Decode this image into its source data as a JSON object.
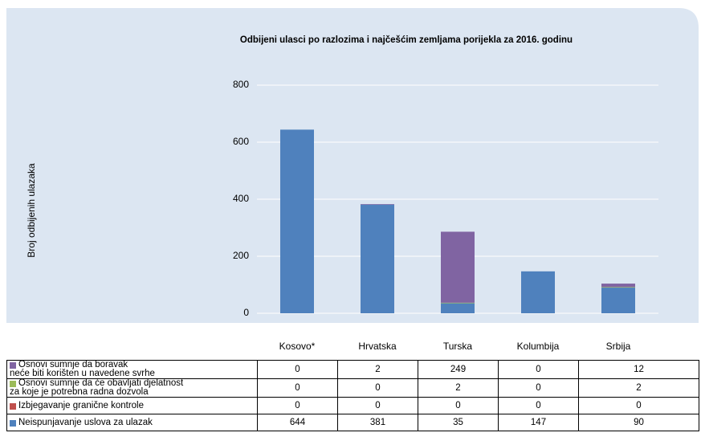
{
  "chart_data": {
    "type": "bar",
    "stacked": true,
    "title": "Odbijeni ulasci po razlozima i najčešćim zemljama porijekla za 2016. godinu",
    "ylabel": "Broj odbijenih ulazaka",
    "categories": [
      "Kosovo*",
      "Hrvatska",
      "Turska",
      "Kolumbija",
      "Srbija"
    ],
    "series": [
      {
        "name": "Neispunjavanje uslova za ulazak",
        "color": "#4f81bd",
        "values": [
          644,
          381,
          35,
          147,
          90
        ]
      },
      {
        "name": "Izbjegavanje granične kontrole",
        "color": "#c0504d",
        "values": [
          0,
          0,
          0,
          0,
          0
        ]
      },
      {
        "name": "Osnovi sumnje da će obavljati djelatnost\nza koje je potrebna radna dozvola",
        "color": "#9bbb59",
        "values": [
          0,
          0,
          2,
          0,
          2
        ]
      },
      {
        "name": "Osnovi sumnje da boravak\nneće biti korišten u navedene svrhe",
        "color": "#8064a2",
        "values": [
          0,
          2,
          249,
          0,
          12
        ]
      }
    ],
    "ylim": [
      0,
      800
    ],
    "yticks": [
      0,
      200,
      400,
      600,
      800
    ],
    "grid": true
  }
}
